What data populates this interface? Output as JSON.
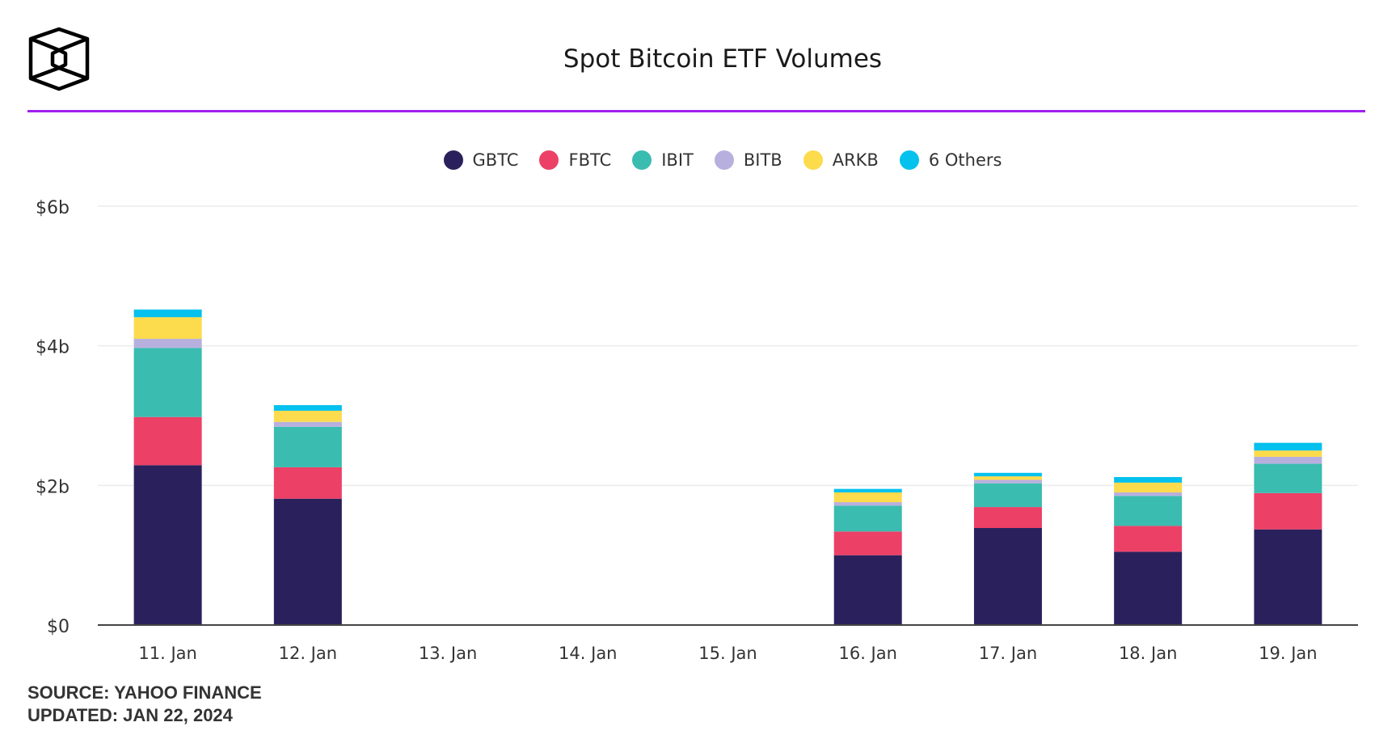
{
  "header": {
    "title": "Spot Bitcoin ETF Volumes",
    "logo": "hexagon-cube-logo"
  },
  "colors": {
    "rule": "#a020f0"
  },
  "footer": {
    "source": "SOURCE: YAHOO FINANCE",
    "updated": "UPDATED: JAN 22, 2024"
  },
  "chart_data": {
    "type": "bar",
    "stacked": true,
    "title": "Spot Bitcoin ETF Volumes",
    "xlabel": "",
    "ylabel": "",
    "ylim": [
      0,
      6
    ],
    "yticks": [
      0,
      2,
      4,
      6
    ],
    "ytick_labels": [
      "$0",
      "$2b",
      "$4b",
      "$6b"
    ],
    "grid": true,
    "legend": "top-center",
    "categories": [
      "11. Jan",
      "12. Jan",
      "13. Jan",
      "14. Jan",
      "15. Jan",
      "16. Jan",
      "17. Jan",
      "18. Jan",
      "19. Jan"
    ],
    "series": [
      {
        "name": "GBTC",
        "color": "#2a215c",
        "values": [
          2.29,
          1.81,
          0,
          0,
          0,
          1.0,
          1.39,
          1.05,
          1.37
        ]
      },
      {
        "name": "FBTC",
        "color": "#ec4067",
        "values": [
          0.69,
          0.45,
          0,
          0,
          0,
          0.34,
          0.3,
          0.37,
          0.52
        ]
      },
      {
        "name": "IBIT",
        "color": "#3bbcb0",
        "values": [
          0.99,
          0.58,
          0,
          0,
          0,
          0.37,
          0.34,
          0.43,
          0.42
        ]
      },
      {
        "name": "BITB",
        "color": "#b7b0df",
        "values": [
          0.13,
          0.07,
          0,
          0,
          0,
          0.05,
          0.05,
          0.05,
          0.1
        ]
      },
      {
        "name": "ARKB",
        "color": "#fcdb4c",
        "values": [
          0.31,
          0.16,
          0,
          0,
          0,
          0.14,
          0.05,
          0.14,
          0.09
        ]
      },
      {
        "name": "6 Others",
        "color": "#04c1ee",
        "values": [
          0.11,
          0.08,
          0,
          0,
          0,
          0.05,
          0.05,
          0.08,
          0.11
        ]
      }
    ]
  }
}
